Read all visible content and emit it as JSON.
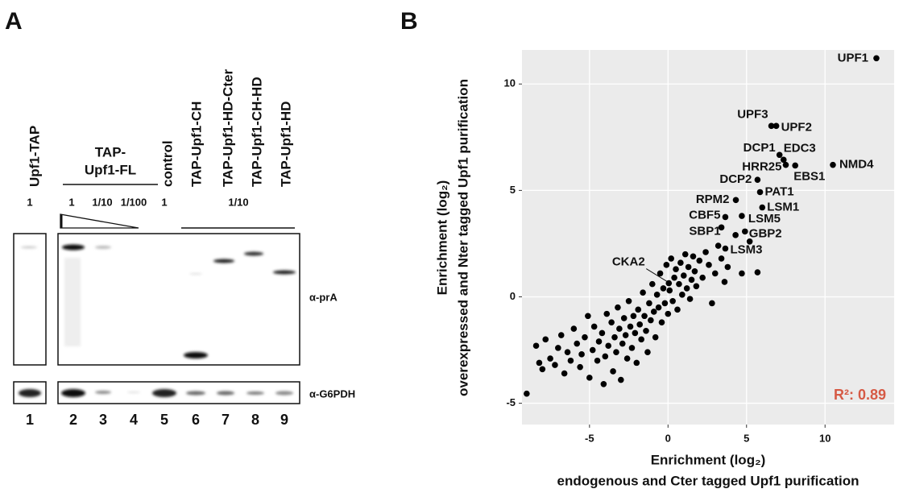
{
  "panel_a": {
    "letter": "A",
    "headers": [
      "Upf1-TAP",
      "TAP-",
      "Upf1-FL",
      "control",
      "TAP-Upf1-CH",
      "TAP-Upf1-HD-Cter",
      "TAP-Upf1-CH-HD",
      "TAP-Upf1-HD"
    ],
    "loadings": [
      "1",
      "1",
      "1/10",
      "1/100",
      "1",
      "1/10"
    ],
    "antibodies": [
      "α-prA",
      "α-G6PDH"
    ],
    "lane_numbers": [
      1,
      2,
      3,
      4,
      5,
      6,
      7,
      8,
      9
    ]
  },
  "chart_data": {
    "type": "scatter",
    "panel_label": "B",
    "x_label": [
      "Enrichment (log₂)",
      "endogenous and Cter tagged Upf1 purification"
    ],
    "y_label": [
      "Enrichment (log₂)",
      "overexpressed and Nter tagged Upf1 purification"
    ],
    "annotation": "R²: 0.89",
    "annotation_color": "#d65a45",
    "color": "#000000",
    "xlim": [
      -9.3,
      14.4
    ],
    "ylim": [
      -6,
      11.6
    ],
    "xticks": [
      -5,
      0,
      5,
      10
    ],
    "yticks": [
      -5,
      0,
      5,
      10
    ],
    "grid": true,
    "x": [
      13.27,
      6.58,
      6.89,
      7.1,
      7.36,
      7.5,
      8.1,
      10.5,
      5.7,
      5.86,
      4.32,
      6.0,
      3.65,
      4.7,
      3.4,
      4.9,
      3.65,
      0.05,
      -9.0,
      -8.4,
      -8.2,
      -8.0,
      -7.8,
      -7.5,
      -7.2,
      -7.0,
      -6.8,
      -6.6,
      -6.4,
      -6.2,
      -6.0,
      -5.8,
      -5.6,
      -5.5,
      -5.3,
      -5.1,
      -5.0,
      -4.8,
      -4.7,
      -4.5,
      -4.4,
      -4.2,
      -4.1,
      -4.0,
      -3.9,
      -3.8,
      -3.6,
      -3.5,
      -3.4,
      -3.3,
      -3.2,
      -3.1,
      -3.0,
      -2.9,
      -2.8,
      -2.7,
      -2.6,
      -2.5,
      -2.4,
      -2.3,
      -2.2,
      -2.1,
      -2.0,
      -1.9,
      -1.8,
      -1.7,
      -1.6,
      -1.5,
      -1.4,
      -1.3,
      -1.2,
      -1.1,
      -1.0,
      -0.9,
      -0.8,
      -0.7,
      -0.6,
      -0.5,
      -0.4,
      -0.3,
      -0.2,
      -0.1,
      0.0,
      0.1,
      0.2,
      0.3,
      0.4,
      0.5,
      0.6,
      0.7,
      0.8,
      0.9,
      1.0,
      1.1,
      1.2,
      1.3,
      1.4,
      1.5,
      1.6,
      1.7,
      1.8,
      2.0,
      2.2,
      2.4,
      2.6,
      2.8,
      3.0,
      3.2,
      3.4,
      3.6,
      3.8,
      4.3,
      4.7,
      5.2,
      5.7
    ],
    "values": [
      11.21,
      8.03,
      8.03,
      6.67,
      6.44,
      6.2,
      6.17,
      6.2,
      5.5,
      4.92,
      4.55,
      4.2,
      3.75,
      3.8,
      3.26,
      3.07,
      2.27,
      0.64,
      -4.55,
      -2.3,
      -3.1,
      -3.4,
      -2.0,
      -2.9,
      -3.2,
      -2.4,
      -1.8,
      -3.6,
      -2.6,
      -3.0,
      -1.5,
      -2.2,
      -3.3,
      -2.7,
      -1.9,
      -0.9,
      -3.8,
      -2.5,
      -1.4,
      -3.0,
      -2.1,
      -1.7,
      -4.1,
      -2.8,
      -0.8,
      -2.3,
      -1.2,
      -3.5,
      -1.9,
      -2.6,
      -0.5,
      -1.5,
      -3.9,
      -2.2,
      -1.0,
      -1.8,
      -2.9,
      -0.2,
      -1.4,
      -2.4,
      -0.9,
      -1.7,
      -3.1,
      -0.6,
      -1.3,
      -2.0,
      0.2,
      -0.9,
      -1.6,
      -2.6,
      -0.3,
      -1.1,
      0.6,
      -0.7,
      -1.9,
      0.1,
      -0.5,
      1.1,
      -1.2,
      0.4,
      -0.3,
      1.5,
      -0.8,
      0.3,
      1.8,
      -0.2,
      0.9,
      1.3,
      -0.6,
      0.6,
      1.6,
      0.1,
      1.0,
      2.0,
      0.4,
      1.4,
      -0.1,
      0.8,
      1.9,
      1.2,
      0.5,
      1.7,
      0.9,
      2.1,
      1.5,
      -0.3,
      1.1,
      2.4,
      1.8,
      0.7,
      1.4,
      2.9,
      1.1,
      2.6,
      1.15
    ],
    "point_labels": [
      "UPF1",
      "UPF3",
      "UPF2",
      "DCP1",
      "EDC3",
      "HRR25",
      "EBS1",
      "NMD4",
      "DCP2",
      "PAT1",
      "RPM2",
      "LSM1",
      "CBF5",
      "LSM5",
      "SBP1",
      "GBP2",
      "LSM3",
      "CKA2",
      null,
      null,
      null,
      null,
      null,
      null,
      null,
      null,
      null,
      null,
      null,
      null,
      null,
      null,
      null,
      null,
      null,
      null,
      null,
      null,
      null,
      null,
      null,
      null,
      null,
      null,
      null,
      null,
      null,
      null,
      null,
      null,
      null,
      null,
      null,
      null,
      null,
      null,
      null,
      null,
      null,
      null,
      null,
      null,
      null,
      null,
      null,
      null,
      null,
      null,
      null,
      null,
      null,
      null,
      null,
      null,
      null,
      null,
      null,
      null,
      null,
      null,
      null,
      null,
      null,
      null,
      null,
      null,
      null,
      null,
      null,
      null,
      null,
      null,
      null,
      null,
      null,
      null,
      null,
      null,
      null,
      null,
      null,
      null,
      null,
      null,
      null,
      null,
      null,
      null,
      null,
      null,
      null,
      null,
      null,
      null,
      null
    ]
  }
}
